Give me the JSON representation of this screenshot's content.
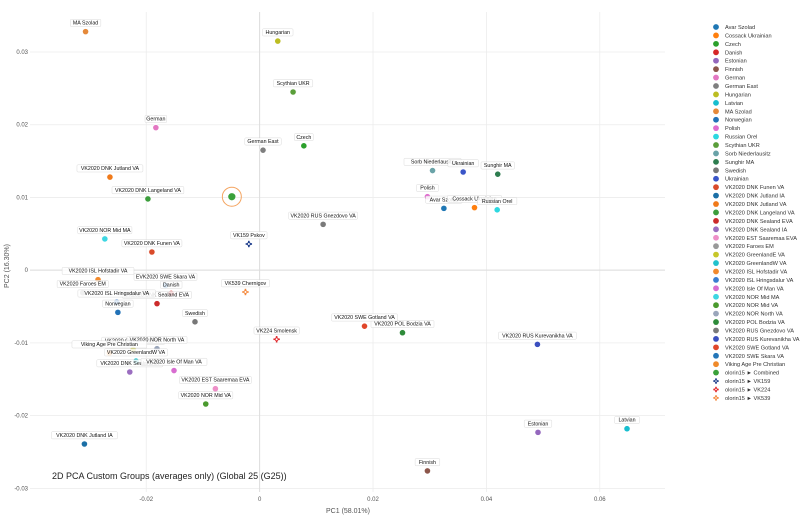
{
  "chart_data": {
    "type": "scatter",
    "title": "2D PCA Custom Groups (averages only) (Global 25 (G25))",
    "xlabel": "PC1 (58.01%)",
    "ylabel": "PC2 (16.30%)",
    "xlim": [
      -0.0405,
      0.0715
    ],
    "ylim": [
      -0.0305,
      0.0355
    ],
    "xticks": [
      -0.02,
      0,
      0.02,
      0.04,
      0.06
    ],
    "xtick_labels": [
      "-0.02",
      "0",
      "0.02",
      "0.04",
      "0.06"
    ],
    "yticks": [
      -0.03,
      -0.02,
      -0.01,
      0,
      0.01,
      0.02,
      0.03
    ],
    "ytick_labels": [
      "-0.03",
      "-0.02",
      "-0.01",
      "0",
      "0.01",
      "0.02",
      "0.03"
    ],
    "grid": true,
    "legend_position": "right",
    "series": [
      {
        "name": "Avar Szolad",
        "color": "#1f77b4",
        "marker": "circle",
        "points": [
          {
            "x": 0.0325,
            "y": 0.0085,
            "label": "Avar Szolad"
          }
        ]
      },
      {
        "name": "Cossack Ukrainian",
        "color": "#ff7f0e",
        "marker": "circle",
        "points": [
          {
            "x": 0.0379,
            "y": 0.0086,
            "label": "Cossack Ukrainian"
          }
        ]
      },
      {
        "name": "Czech",
        "color": "#2ca02c",
        "marker": "circle",
        "points": [
          {
            "x": 0.0078,
            "y": 0.0171,
            "label": "Czech"
          }
        ]
      },
      {
        "name": "Danish",
        "color": "#d62728",
        "marker": "circle",
        "points": [
          {
            "x": -0.0156,
            "y": -0.0032,
            "label": "Danish"
          }
        ]
      },
      {
        "name": "Estonian",
        "color": "#9467bd",
        "marker": "circle",
        "points": [
          {
            "x": 0.0491,
            "y": -0.0223,
            "label": "Estonian"
          }
        ]
      },
      {
        "name": "Finnish",
        "color": "#8c564b",
        "marker": "circle",
        "points": [
          {
            "x": 0.0296,
            "y": -0.0276,
            "label": "Finnish"
          }
        ]
      },
      {
        "name": "German",
        "color": "#e377c2",
        "marker": "circle",
        "points": [
          {
            "x": -0.0183,
            "y": 0.0196,
            "label": "German"
          }
        ]
      },
      {
        "name": "German East",
        "color": "#7f7f7f",
        "marker": "circle",
        "points": [
          {
            "x": 0.0006,
            "y": 0.0165,
            "label": "German East"
          }
        ]
      },
      {
        "name": "Hungarian",
        "color": "#bcbd22",
        "marker": "circle",
        "points": [
          {
            "x": 0.0032,
            "y": 0.0315,
            "label": "Hungarian"
          }
        ]
      },
      {
        "name": "Latvian",
        "color": "#17becf",
        "marker": "circle",
        "points": [
          {
            "x": 0.0648,
            "y": -0.0218,
            "label": "Latvian"
          }
        ]
      },
      {
        "name": "MA Szolad",
        "color": "#e5893a",
        "marker": "circle",
        "points": [
          {
            "x": -0.0307,
            "y": 0.0328,
            "label": "MA Szolad"
          }
        ]
      },
      {
        "name": "Norwegian",
        "color": "#2272b7",
        "marker": "circle",
        "points": [
          {
            "x": -0.025,
            "y": -0.0058,
            "label": "Norwegian"
          }
        ]
      },
      {
        "name": "Polish",
        "color": "#e06ccf",
        "marker": "circle",
        "points": [
          {
            "x": 0.0296,
            "y": 0.0101,
            "label": "Polish"
          }
        ]
      },
      {
        "name": "Russian Orel",
        "color": "#2dd8e0",
        "marker": "circle",
        "points": [
          {
            "x": 0.0419,
            "y": 0.0083,
            "label": "Russian Orel"
          }
        ]
      },
      {
        "name": "Scythian UKR",
        "color": "#5a9e3a",
        "marker": "circle",
        "points": [
          {
            "x": 0.0059,
            "y": 0.0245,
            "label": "Scythian UKR"
          }
        ]
      },
      {
        "name": "Sorb Niederlausitz",
        "color": "#6aa3a8",
        "marker": "circle",
        "points": [
          {
            "x": 0.0305,
            "y": 0.0137,
            "label": "Sorb Niederlausitz"
          }
        ]
      },
      {
        "name": "Sunghir MA",
        "color": "#2e7d4f",
        "marker": "circle",
        "points": [
          {
            "x": 0.042,
            "y": 0.0132,
            "label": "Sunghir MA"
          }
        ]
      },
      {
        "name": "Swedish",
        "color": "#777777",
        "marker": "circle",
        "points": [
          {
            "x": -0.0114,
            "y": -0.0071,
            "label": "Swedish"
          }
        ]
      },
      {
        "name": "Ukrainian",
        "color": "#3a55c8",
        "marker": "circle",
        "points": [
          {
            "x": 0.0359,
            "y": 0.0135,
            "label": "Ukrainian"
          }
        ]
      },
      {
        "name": "VK2020 DNK Funen VA",
        "color": "#d94a2a",
        "marker": "circle",
        "points": [
          {
            "x": -0.019,
            "y": 0.0025,
            "label": "VK2020 DNK Funen VA"
          }
        ]
      },
      {
        "name": "VK2020 DNK Jutland IA",
        "color": "#1b6fa6",
        "marker": "circle",
        "points": [
          {
            "x": -0.0309,
            "y": -0.0239,
            "label": "VK2020 DNK Jutland IA"
          }
        ]
      },
      {
        "name": "VK2020 DNK Jutland VA",
        "color": "#f07a1a",
        "marker": "circle",
        "points": [
          {
            "x": -0.0264,
            "y": 0.0128,
            "label": "VK2020 DNK Jutland VA"
          }
        ]
      },
      {
        "name": "VK2020 DNK Langeland VA",
        "color": "#3c9d3c",
        "marker": "circle",
        "points": [
          {
            "x": -0.0197,
            "y": 0.0098,
            "label": "VK2020 DNK Langeland VA"
          }
        ]
      },
      {
        "name": "VK2020 DNK Sealand EVA",
        "color": "#cc2b2b",
        "marker": "circle",
        "points": [
          {
            "x": -0.0181,
            "y": -0.0046,
            "label": "VK2020 DNK Sealand EVA"
          }
        ]
      },
      {
        "name": "VK2020 DNK Sealand IA",
        "color": "#9b6ec0",
        "marker": "circle",
        "points": [
          {
            "x": -0.0229,
            "y": -0.014,
            "label": "VK2020 DNK Sealand IA"
          }
        ]
      },
      {
        "name": "VK2020 EST Saaremaa EVA",
        "color": "#ee8fc8",
        "marker": "circle",
        "points": [
          {
            "x": -0.0078,
            "y": -0.0163,
            "label": "VK2020 EST Saaremaa EVA"
          }
        ]
      },
      {
        "name": "VK2020 Faroes EM",
        "color": "#999999",
        "marker": "circle",
        "points": [
          {
            "x": -0.0312,
            "y": -0.0031,
            "label": "VK2020 Faroes EM"
          }
        ]
      },
      {
        "name": "VK2020 GreenlandE VA",
        "color": "#c7c72a",
        "marker": "circle",
        "points": [
          {
            "x": -0.0223,
            "y": -0.0109,
            "label": "VK2020 GreenlandE VA"
          }
        ]
      },
      {
        "name": "VK2020 GreenlandW VA",
        "color": "#22c2cc",
        "marker": "circle",
        "points": [
          {
            "x": -0.0218,
            "y": -0.0125,
            "label": "VK2020 GreenlandW VA"
          }
        ]
      },
      {
        "name": "VK2020 ISL Hofstadir VA",
        "color": "#f28a2d",
        "marker": "circle",
        "points": [
          {
            "x": -0.0285,
            "y": -0.0013,
            "label": "VK2020 ISL Hofstadir VA"
          }
        ]
      },
      {
        "name": "VK2020 ISL Hringsdalur VA",
        "color": "#3a7dd0",
        "marker": "circle",
        "points": [
          {
            "x": -0.0252,
            "y": -0.0044,
            "label": "VK2020 ISL Hringsdalur VA"
          }
        ]
      },
      {
        "name": "VK2020 Isle Of Man VA",
        "color": "#d86dd0",
        "marker": "circle",
        "points": [
          {
            "x": -0.0151,
            "y": -0.0138,
            "label": "VK2020 Isle Of Man VA"
          }
        ]
      },
      {
        "name": "VK2020 NOR Mid MA",
        "color": "#3dd6e2",
        "marker": "circle",
        "points": [
          {
            "x": -0.0273,
            "y": 0.0043,
            "label": "VK2020 NOR Mid MA"
          }
        ]
      },
      {
        "name": "VK2020 NOR Mid VA",
        "color": "#4a9a2e",
        "marker": "circle",
        "points": [
          {
            "x": -0.0095,
            "y": -0.0184,
            "label": "VK2020 NOR Mid VA"
          }
        ]
      },
      {
        "name": "VK2020 NOR North VA",
        "color": "#9aa6bb",
        "marker": "circle",
        "points": [
          {
            "x": -0.0181,
            "y": -0.0108,
            "label": "VK2020 NOR North VA"
          }
        ]
      },
      {
        "name": "VK2020 POL Bodzia VA",
        "color": "#2e8b3a",
        "marker": "circle",
        "points": [
          {
            "x": 0.0252,
            "y": -0.0086,
            "label": "VK2020 POL Bodzia VA"
          }
        ]
      },
      {
        "name": "VK2020 RUS Gnezdovo VA",
        "color": "#7a7a7a",
        "marker": "circle",
        "points": [
          {
            "x": 0.0112,
            "y": 0.0063,
            "label": "VK2020 RUS Gnezdovo VA"
          }
        ]
      },
      {
        "name": "VK2020 RUS Kurevanikha VA",
        "color": "#3b4fbf",
        "marker": "circle",
        "points": [
          {
            "x": 0.049,
            "y": -0.0102,
            "label": "VK2020 RUS Kurevanikha VA"
          }
        ]
      },
      {
        "name": "VK2020 SWE Gotland VA",
        "color": "#e0462a",
        "marker": "circle",
        "points": [
          {
            "x": 0.0185,
            "y": -0.0077,
            "label": "VK2020 SWE Gotland VA"
          }
        ]
      },
      {
        "name": "VK2020 SWE Skara VA",
        "color": "#2476b8",
        "marker": "circle",
        "points": [
          {
            "x": -0.0166,
            "y": -0.0021,
            "label": "EVK2020 SWE Skara VA"
          }
        ]
      },
      {
        "name": "Viking Age Pre Christian",
        "color": "#ef8a2a",
        "marker": "circle",
        "points": [
          {
            "x": -0.0265,
            "y": -0.0114,
            "label": "Viking Age Pre Christian"
          }
        ]
      },
      {
        "name": "olorin15 ► Combined",
        "color": "#3aa13a",
        "marker": "circle-highlight",
        "points": [
          {
            "x": -0.0049,
            "y": 0.0101,
            "label": ""
          }
        ]
      },
      {
        "name": "olorin15 ► VK159",
        "color": "#1a3a8a",
        "marker": "cross",
        "points": [
          {
            "x": -0.0019,
            "y": 0.0036,
            "label": "VK159 Pskov"
          }
        ]
      },
      {
        "name": "olorin15 ► VK224",
        "color": "#e0262a",
        "marker": "cross",
        "points": [
          {
            "x": 0.003,
            "y": -0.0095,
            "label": "VK224 Smolensk"
          }
        ]
      },
      {
        "name": "olorin15 ► VK539",
        "color": "#f4883c",
        "marker": "cross",
        "points": [
          {
            "x": -0.0025,
            "y": -0.003,
            "label": "VK539 Chernigov"
          }
        ]
      }
    ]
  }
}
